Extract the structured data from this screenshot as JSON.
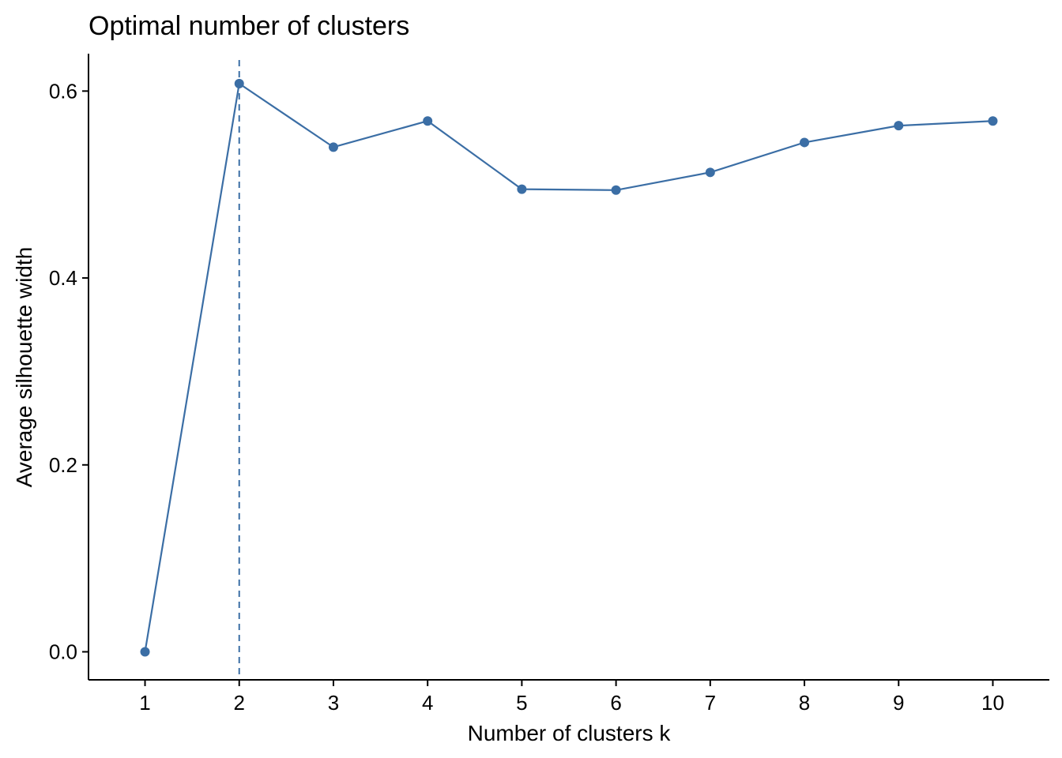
{
  "chart_data": {
    "type": "line",
    "title": "Optimal number of clusters",
    "xlabel": "Number of clusters k",
    "ylabel": "Average silhouette width",
    "categories": [
      "1",
      "2",
      "3",
      "4",
      "5",
      "6",
      "7",
      "8",
      "9",
      "10"
    ],
    "x": [
      1,
      2,
      3,
      4,
      5,
      6,
      7,
      8,
      9,
      10
    ],
    "y_ticks": [
      "0.0",
      "0.2",
      "0.4",
      "0.6"
    ],
    "y_tick_values": [
      0.0,
      0.2,
      0.4,
      0.6
    ],
    "ylim": [
      -0.03,
      0.64
    ],
    "xlim": [
      0.4,
      10.6
    ],
    "series": [
      {
        "values": [
          0.0,
          0.608,
          0.54,
          0.568,
          0.495,
          0.494,
          0.513,
          0.545,
          0.563,
          0.568
        ]
      }
    ],
    "reference_line": {
      "x": 2,
      "style": "dashed"
    },
    "grid": false,
    "legend": "none",
    "colors": {
      "line": "#3b6ea5",
      "point": "#3b6ea5",
      "axis": "#000000"
    }
  }
}
